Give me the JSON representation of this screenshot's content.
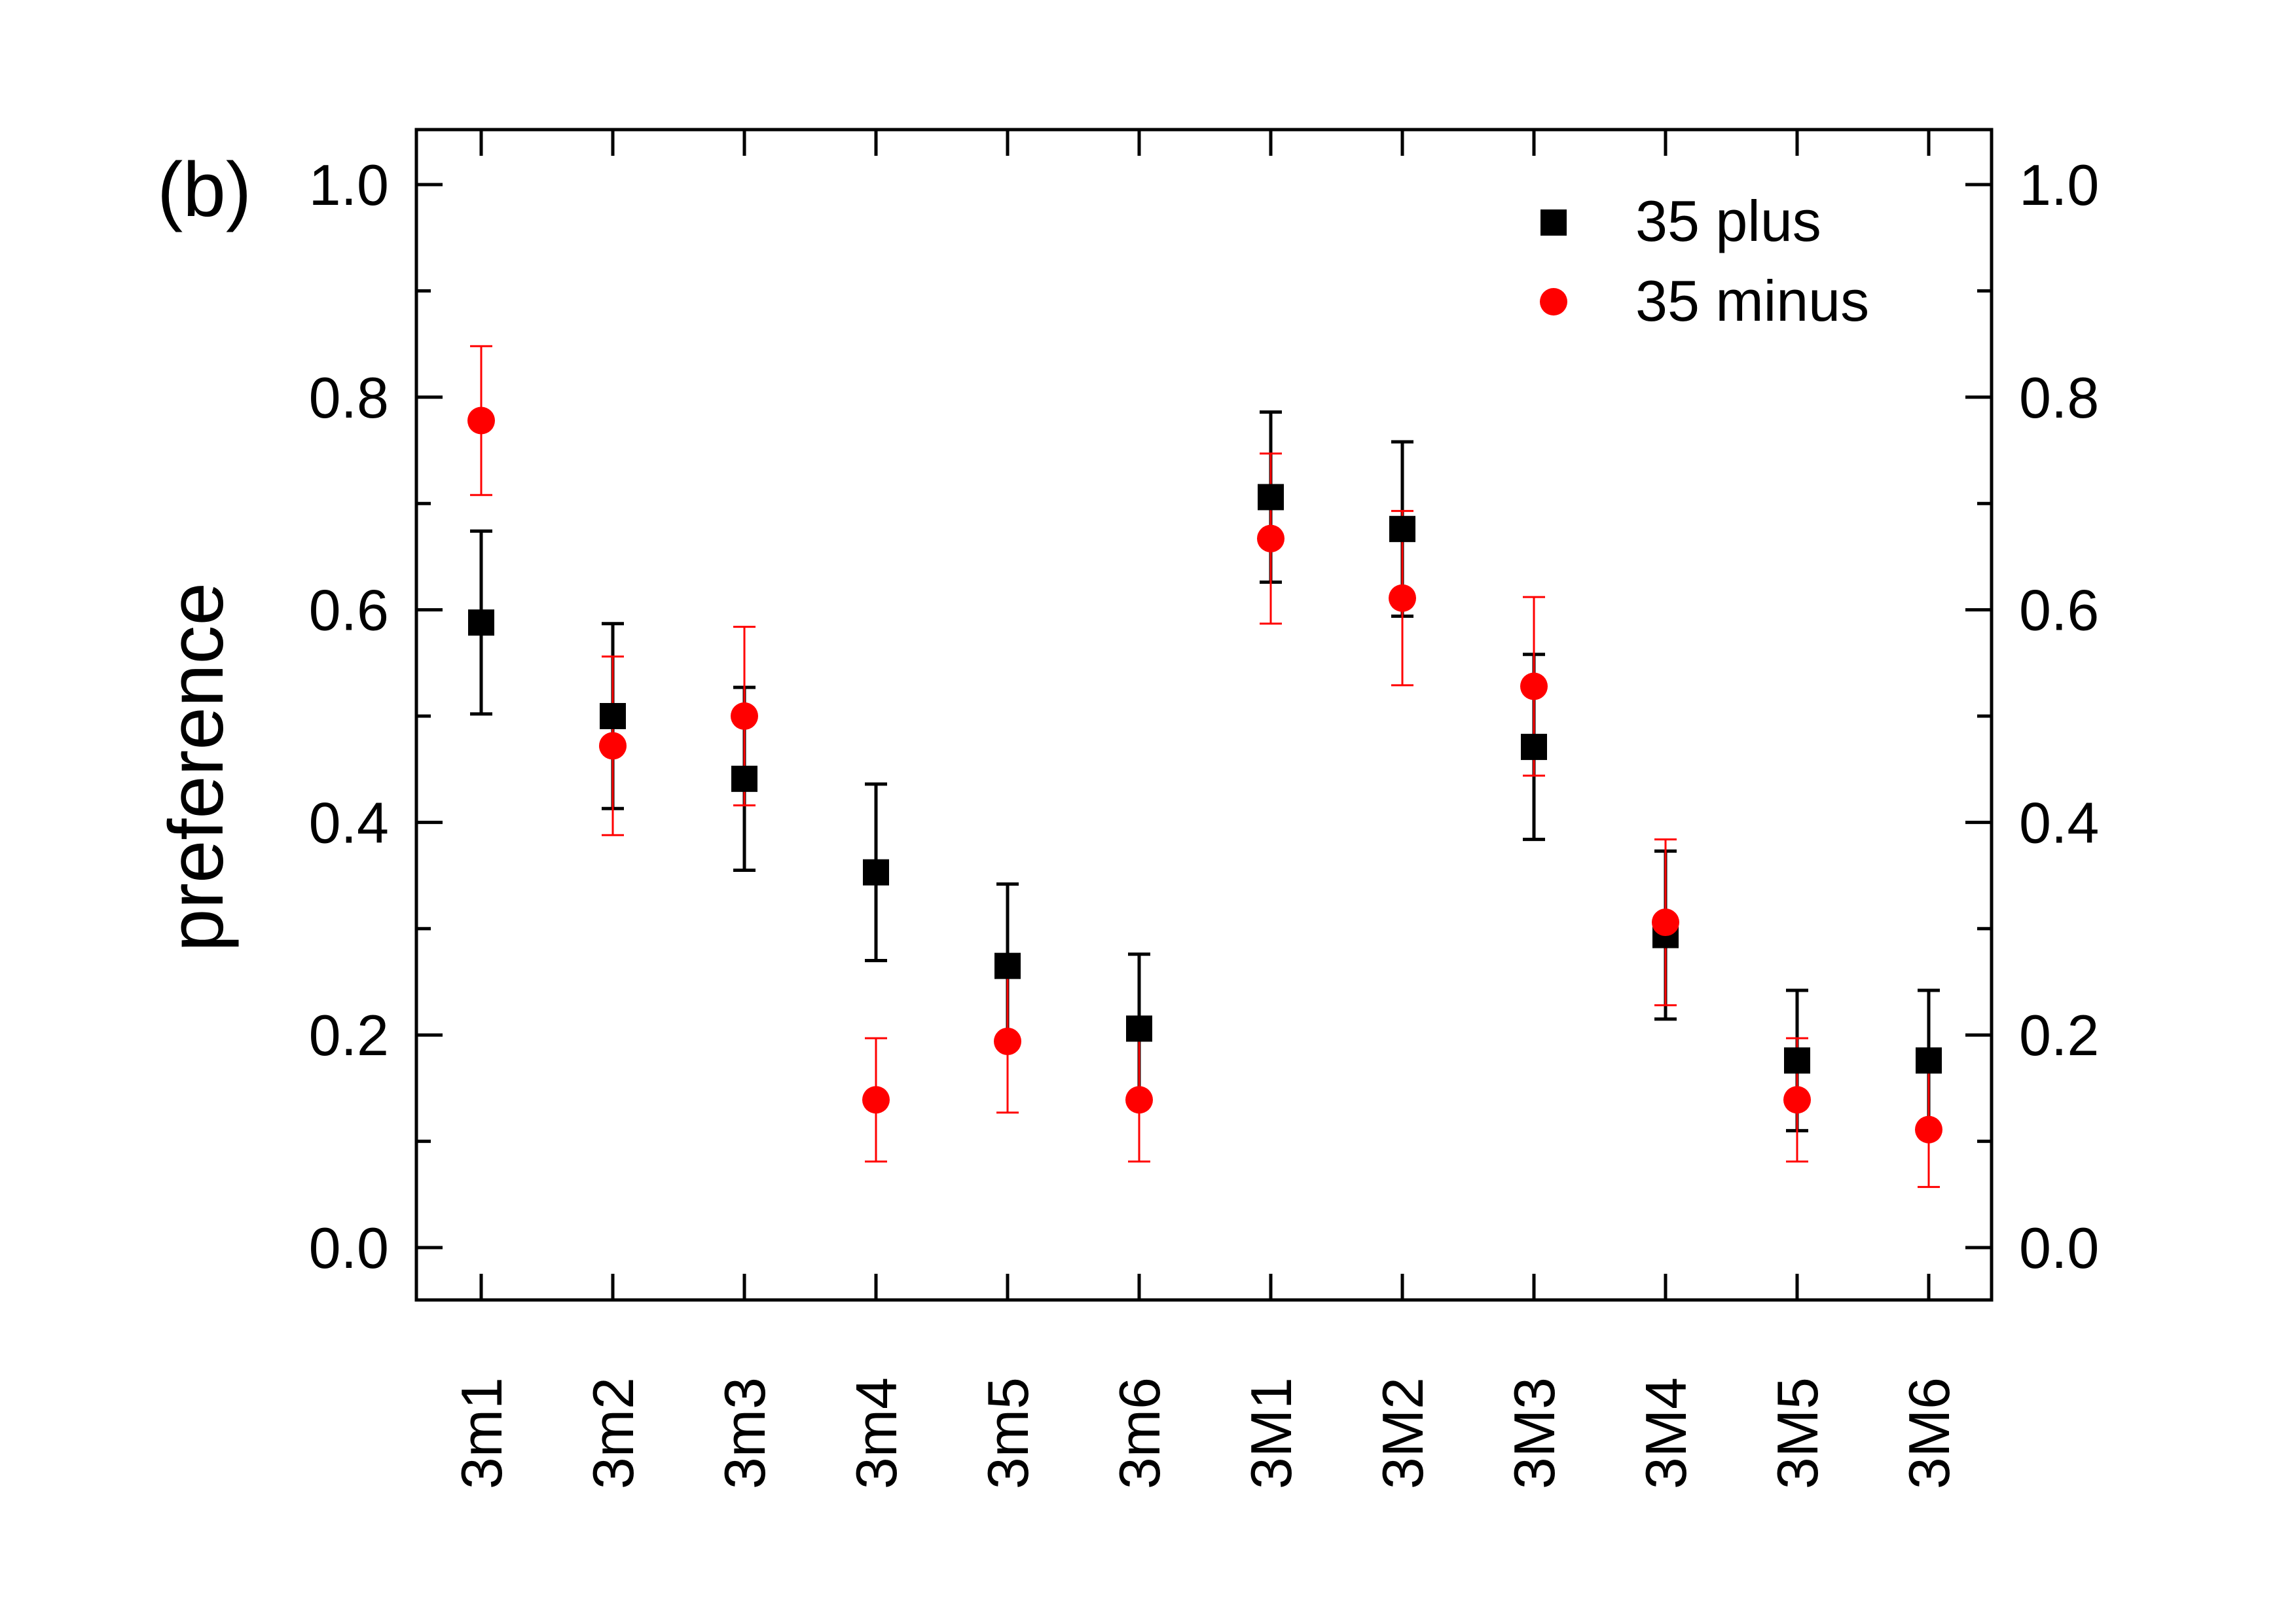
{
  "chart_data": {
    "type": "scatter",
    "panel_label": "(b)",
    "ylabel": "preference",
    "xlabel": "",
    "ylim": [
      -0.05,
      1.05
    ],
    "yticks": [
      0.0,
      0.2,
      0.4,
      0.6,
      0.8,
      1.0
    ],
    "ytick_labels": [
      "0.0",
      "0.2",
      "0.4",
      "0.6",
      "0.8",
      "1.0"
    ],
    "right_axis_labels": true,
    "categories": [
      "3m1",
      "3m2",
      "3m3",
      "3m4",
      "3m5",
      "3m6",
      "3M1",
      "3M2",
      "3M3",
      "3M4",
      "3M5",
      "3M6"
    ],
    "legend_position": "top-right",
    "grid": false,
    "series": [
      {
        "name": "35 plus",
        "marker": "square",
        "color": "#000000",
        "values": [
          0.588,
          0.5,
          0.441,
          0.353,
          0.265,
          0.206,
          0.706,
          0.676,
          0.471,
          0.294,
          0.176,
          0.176
        ],
        "errors": [
          0.086,
          0.087,
          0.086,
          0.083,
          0.077,
          0.07,
          0.08,
          0.082,
          0.087,
          0.079,
          0.066,
          0.066
        ]
      },
      {
        "name": "35 minus",
        "marker": "circle",
        "color": "#ff0000",
        "values": [
          0.778,
          0.472,
          0.5,
          0.139,
          0.194,
          0.139,
          0.667,
          0.611,
          0.528,
          0.306,
          0.139,
          0.111
        ],
        "errors": [
          0.07,
          0.084,
          0.084,
          0.058,
          0.067,
          0.058,
          0.08,
          0.082,
          0.084,
          0.078,
          0.058,
          0.054
        ]
      }
    ]
  }
}
